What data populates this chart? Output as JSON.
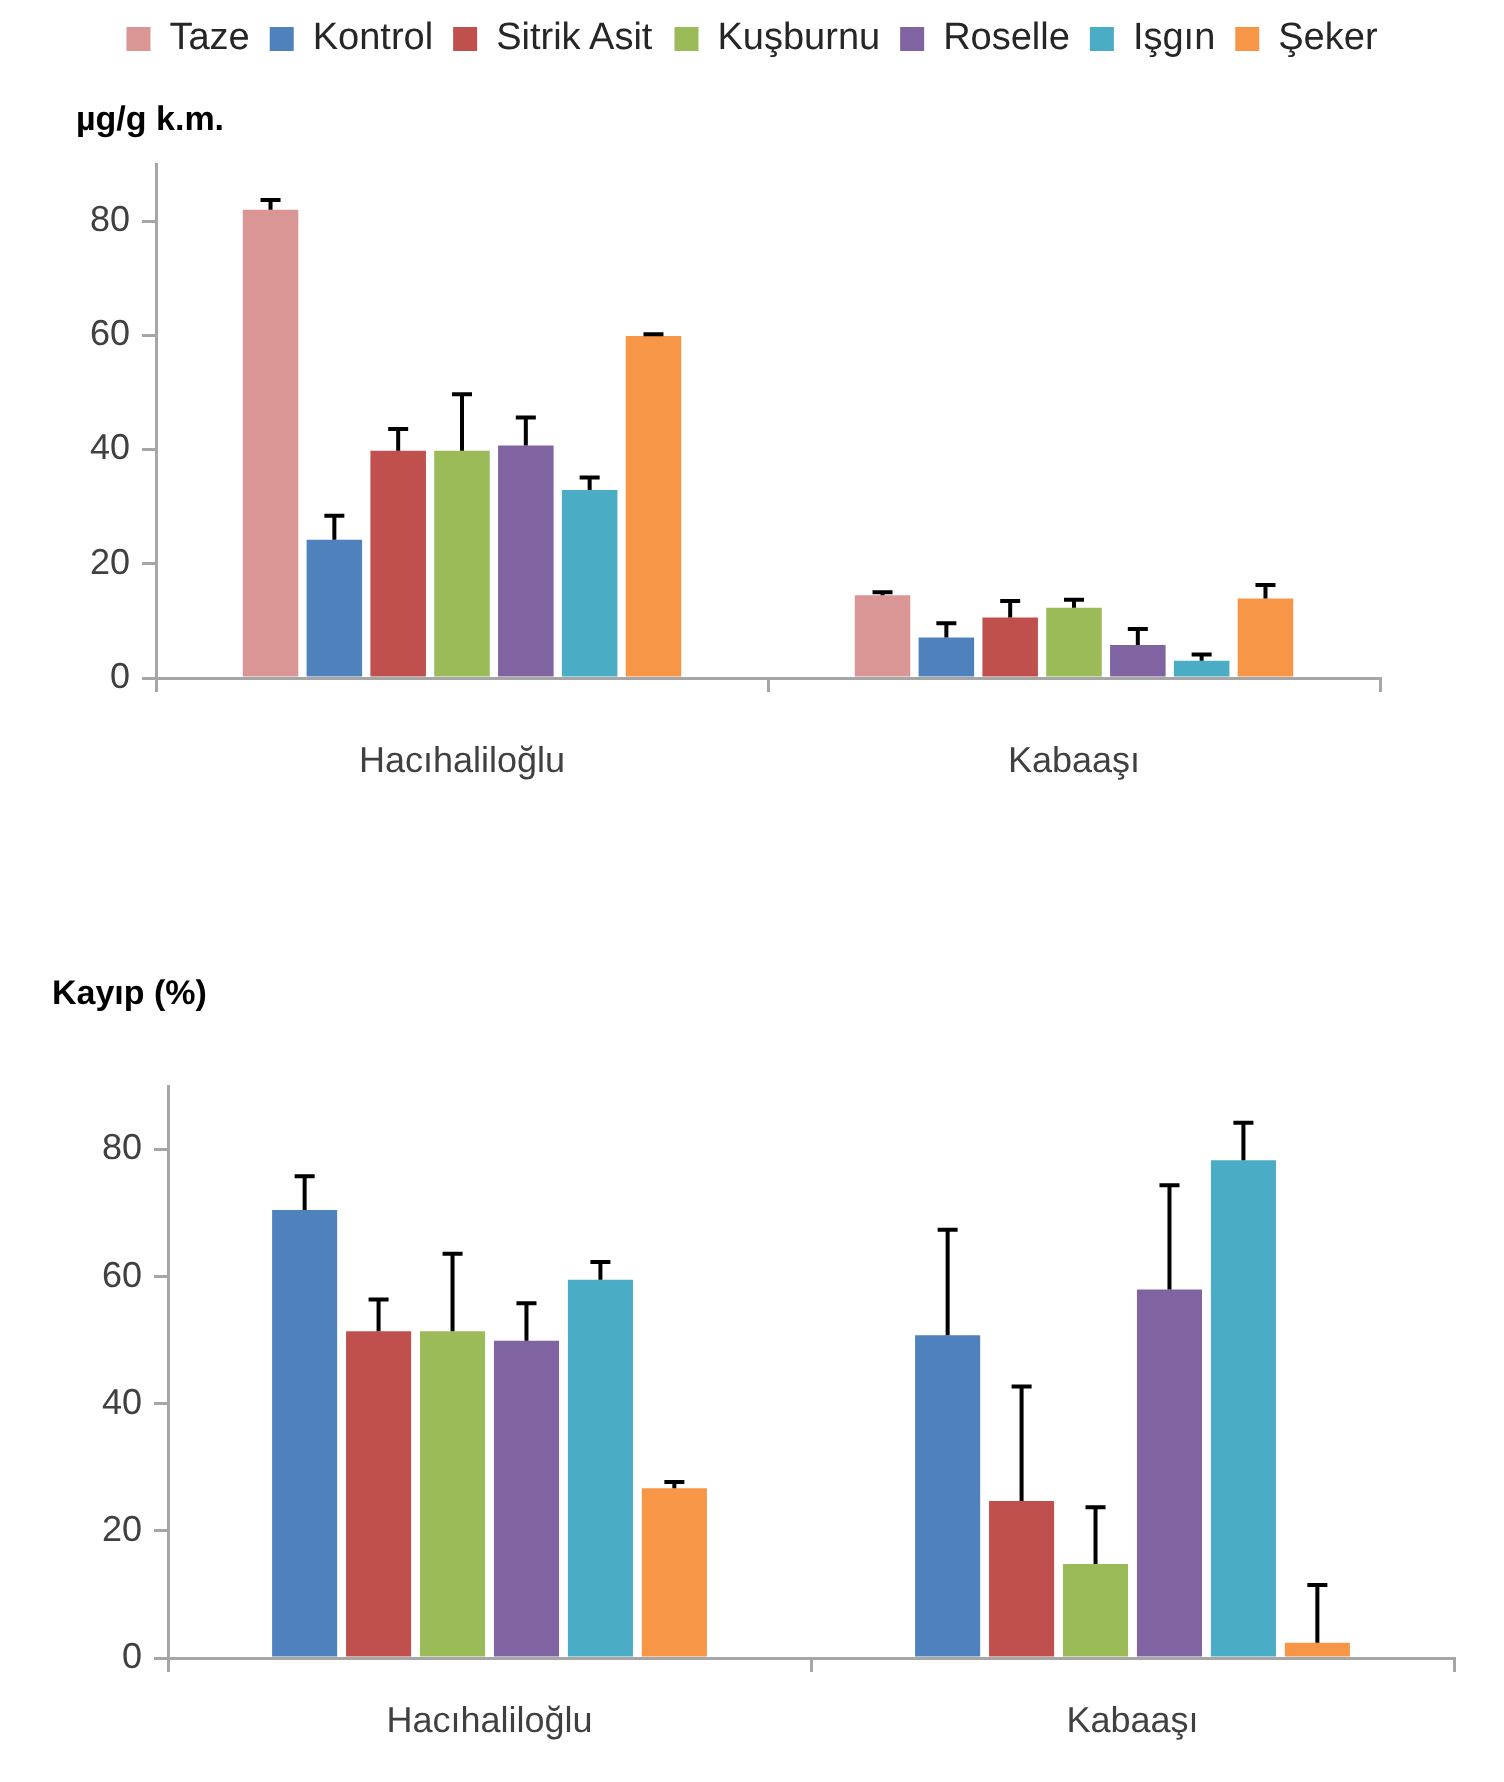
{
  "chart_data": [
    {
      "type": "bar",
      "ylabel": "µg/g k.m.",
      "categories": [
        "Hacıhaliloğlu",
        "Kabaaşı"
      ],
      "ylim": [
        0,
        90
      ],
      "yticks": [
        0,
        20,
        40,
        60,
        80
      ],
      "grid": false,
      "legend": "top",
      "series": [
        {
          "name": "Taze",
          "color": "#d99694",
          "values": [
            82,
            14.5
          ],
          "errors": [
            [
              82,
              83.7
            ],
            [
              14.5,
              15
            ]
          ]
        },
        {
          "name": "Kontrol",
          "color": "#4f81bd",
          "values": [
            24.2,
            7.1
          ],
          "errors": [
            [
              24.2,
              28.4
            ],
            [
              7.1,
              9.6
            ]
          ]
        },
        {
          "name": "Sitrik Asit",
          "color": "#c0504d",
          "values": [
            39.8,
            10.6
          ],
          "errors": [
            [
              39.8,
              43.6
            ],
            [
              10.6,
              13.5
            ]
          ]
        },
        {
          "name": "Kuşburnu",
          "color": "#9bbb59",
          "values": [
            39.8,
            12.3
          ],
          "errors": [
            [
              39.8,
              49.7
            ],
            [
              12.3,
              13.7
            ]
          ]
        },
        {
          "name": "Roselle",
          "color": "#8064a2",
          "values": [
            40.7,
            5.8
          ],
          "errors": [
            [
              40.7,
              45.6
            ],
            [
              5.8,
              8.6
            ]
          ]
        },
        {
          "name": "Işgın",
          "color": "#4bacc6",
          "values": [
            32.9,
            3.0
          ],
          "errors": [
            [
              32.9,
              35.1
            ],
            [
              3.0,
              4.1
            ]
          ]
        },
        {
          "name": "Şeker",
          "color": "#f79646",
          "values": [
            59.9,
            13.9
          ],
          "errors": [
            [
              59.9,
              60.2
            ],
            [
              13.9,
              16.3
            ]
          ]
        }
      ]
    },
    {
      "type": "bar",
      "ylabel": "Kayıp (%)",
      "categories": [
        "Hacıhaliloğlu",
        "Kabaaşı"
      ],
      "ylim": [
        0,
        90
      ],
      "yticks": [
        0,
        20,
        40,
        60,
        80
      ],
      "grid": false,
      "series": [
        {
          "color": "#4f81bd",
          "values": [
            70.5,
            50.8
          ],
          "errors": [
            [
              70.5,
              75.8
            ],
            [
              50.8,
              67.4
            ]
          ]
        },
        {
          "color": "#c0504d",
          "values": [
            51.4,
            24.7
          ],
          "errors": [
            [
              51.4,
              56.4
            ],
            [
              24.7,
              42.7
            ]
          ]
        },
        {
          "color": "#9bbb59",
          "values": [
            51.4,
            14.8
          ],
          "errors": [
            [
              51.4,
              63.6
            ],
            [
              14.8,
              23.7
            ]
          ]
        },
        {
          "color": "#8064a2",
          "values": [
            49.9,
            58.0
          ],
          "errors": [
            [
              49.9,
              55.8
            ],
            [
              58.0,
              74.4
            ]
          ]
        },
        {
          "color": "#4bacc6",
          "values": [
            59.5,
            78.3
          ],
          "errors": [
            [
              59.5,
              62.3
            ],
            [
              78.3,
              84.2
            ]
          ]
        },
        {
          "color": "#f79646",
          "values": [
            26.7,
            2.4
          ],
          "errors": [
            [
              26.7,
              27.7
            ],
            [
              2.4,
              11.5
            ]
          ]
        }
      ]
    }
  ]
}
